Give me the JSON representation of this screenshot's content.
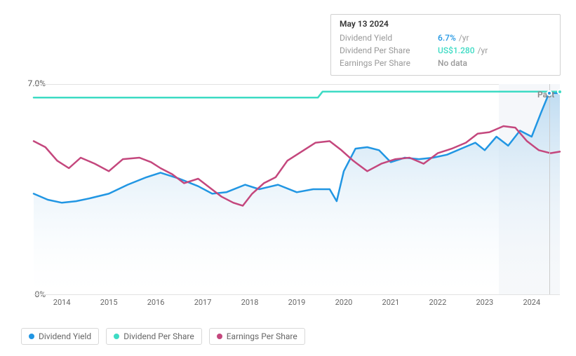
{
  "chart": {
    "type": "line-area",
    "background_color": "#ffffff",
    "grid_color": "#e2e2e2",
    "axis_label_color": "#555555",
    "axis_fontsize": 12,
    "x_tick_fontsize": 11,
    "ylim": [
      0,
      7
    ],
    "y_ticks": [
      {
        "value": 7,
        "label": "7.0%"
      },
      {
        "value": 0,
        "label": "0%"
      }
    ],
    "x_labels": [
      "2014",
      "2015",
      "2016",
      "2017",
      "2018",
      "2019",
      "2020",
      "2021",
      "2022",
      "2023",
      "2024"
    ],
    "x_domain_start": 2013.4,
    "x_domain_end": 2024.6,
    "highlight_region": {
      "from_x": 2023.3,
      "to_x": 2024.6,
      "fill": "#f5f7fa",
      "label": "Past",
      "label_color": "#888888"
    },
    "hover_marker_x": 2024.37,
    "area_gradient_top": "#b7d8f0",
    "area_gradient_bottom": "#ffffff",
    "series": {
      "dividend_yield": {
        "color": "#2196e3",
        "line_width": 2.5,
        "filled": true,
        "data": [
          [
            2013.4,
            3.35
          ],
          [
            2013.7,
            3.15
          ],
          [
            2014.0,
            3.05
          ],
          [
            2014.3,
            3.1
          ],
          [
            2014.6,
            3.2
          ],
          [
            2015.0,
            3.35
          ],
          [
            2015.4,
            3.65
          ],
          [
            2015.8,
            3.9
          ],
          [
            2016.1,
            4.05
          ],
          [
            2016.5,
            3.85
          ],
          [
            2016.9,
            3.6
          ],
          [
            2017.2,
            3.35
          ],
          [
            2017.5,
            3.4
          ],
          [
            2017.9,
            3.65
          ],
          [
            2018.2,
            3.5
          ],
          [
            2018.6,
            3.65
          ],
          [
            2019.0,
            3.4
          ],
          [
            2019.35,
            3.5
          ],
          [
            2019.7,
            3.5
          ],
          [
            2019.85,
            3.1
          ],
          [
            2020.0,
            4.1
          ],
          [
            2020.25,
            4.85
          ],
          [
            2020.5,
            4.9
          ],
          [
            2020.75,
            4.8
          ],
          [
            2021.0,
            4.4
          ],
          [
            2021.3,
            4.55
          ],
          [
            2021.6,
            4.5
          ],
          [
            2021.9,
            4.55
          ],
          [
            2022.2,
            4.65
          ],
          [
            2022.5,
            4.85
          ],
          [
            2022.8,
            5.05
          ],
          [
            2023.0,
            4.8
          ],
          [
            2023.25,
            5.25
          ],
          [
            2023.5,
            4.95
          ],
          [
            2023.75,
            5.45
          ],
          [
            2024.0,
            5.25
          ],
          [
            2024.2,
            6.05
          ],
          [
            2024.37,
            6.7
          ],
          [
            2024.6,
            6.7
          ]
        ]
      },
      "dividend_per_share": {
        "color": "#3ddbc4",
        "line_width": 2.5,
        "filled": false,
        "data": [
          [
            2013.4,
            6.55
          ],
          [
            2015.0,
            6.55
          ],
          [
            2017.0,
            6.55
          ],
          [
            2019.0,
            6.55
          ],
          [
            2019.45,
            6.55
          ],
          [
            2019.55,
            6.75
          ],
          [
            2019.7,
            6.75
          ],
          [
            2024.6,
            6.75
          ]
        ]
      },
      "earnings_per_share": {
        "color": "#c4477d",
        "line_width": 2.5,
        "filled": false,
        "data": [
          [
            2013.4,
            5.1
          ],
          [
            2013.65,
            4.9
          ],
          [
            2013.9,
            4.45
          ],
          [
            2014.15,
            4.2
          ],
          [
            2014.4,
            4.55
          ],
          [
            2014.7,
            4.35
          ],
          [
            2015.0,
            4.1
          ],
          [
            2015.3,
            4.5
          ],
          [
            2015.65,
            4.55
          ],
          [
            2015.9,
            4.4
          ],
          [
            2016.1,
            4.2
          ],
          [
            2016.35,
            4.0
          ],
          [
            2016.6,
            3.7
          ],
          [
            2016.9,
            3.85
          ],
          [
            2017.15,
            3.55
          ],
          [
            2017.4,
            3.25
          ],
          [
            2017.65,
            3.05
          ],
          [
            2017.85,
            2.95
          ],
          [
            2018.05,
            3.35
          ],
          [
            2018.3,
            3.7
          ],
          [
            2018.55,
            3.9
          ],
          [
            2018.8,
            4.45
          ],
          [
            2019.1,
            4.75
          ],
          [
            2019.4,
            5.05
          ],
          [
            2019.7,
            5.1
          ],
          [
            2019.95,
            4.8
          ],
          [
            2020.2,
            4.45
          ],
          [
            2020.5,
            4.1
          ],
          [
            2020.8,
            4.35
          ],
          [
            2021.1,
            4.5
          ],
          [
            2021.4,
            4.55
          ],
          [
            2021.7,
            4.35
          ],
          [
            2022.0,
            4.7
          ],
          [
            2022.3,
            4.85
          ],
          [
            2022.6,
            5.05
          ],
          [
            2022.85,
            5.35
          ],
          [
            2023.1,
            5.4
          ],
          [
            2023.4,
            5.6
          ],
          [
            2023.65,
            5.55
          ],
          [
            2023.9,
            5.1
          ],
          [
            2024.15,
            4.8
          ],
          [
            2024.4,
            4.7
          ],
          [
            2024.6,
            4.75
          ]
        ]
      }
    }
  },
  "tooltip": {
    "date": "May 13 2024",
    "rows": [
      {
        "key": "Dividend Yield",
        "value": "6.7%",
        "suffix": "/yr",
        "color": "#2196e3"
      },
      {
        "key": "Dividend Per Share",
        "value": "US$1.280",
        "suffix": "/yr",
        "color": "#3ddbc4"
      },
      {
        "key": "Earnings Per Share",
        "value": "No data",
        "suffix": "",
        "color": "#999999"
      }
    ]
  },
  "legend": {
    "items": [
      {
        "label": "Dividend Yield",
        "color": "#2196e3"
      },
      {
        "label": "Dividend Per Share",
        "color": "#3ddbc4"
      },
      {
        "label": "Earnings Per Share",
        "color": "#c4477d"
      }
    ]
  }
}
